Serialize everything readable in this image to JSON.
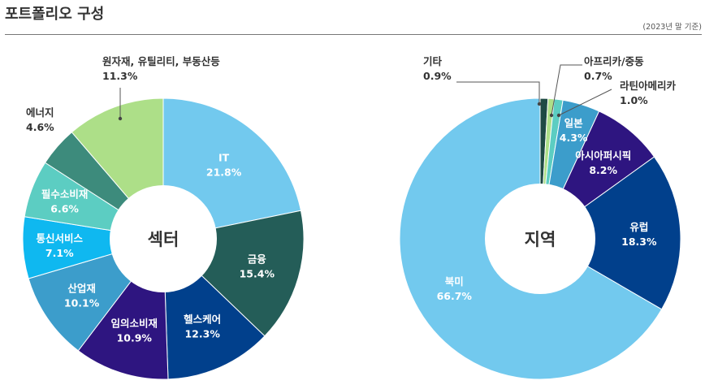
{
  "header": {
    "title": "포트폴리오 구성",
    "note": "(2023년 말 기준)"
  },
  "chart_data": [
    {
      "type": "pie",
      "title": "섹터",
      "unit": "%",
      "slices": [
        {
          "label": "IT",
          "value": 21.8,
          "display": "21.8%",
          "color": "#72c9ee",
          "text_color": "#ffffff"
        },
        {
          "label": "금융",
          "value": 15.4,
          "display": "15.4%",
          "color": "#245d58",
          "text_color": "#ffffff"
        },
        {
          "label": "헬스케어",
          "value": 12.3,
          "display": "12.3%",
          "color": "#01408c",
          "text_color": "#ffffff"
        },
        {
          "label": "임의소비재",
          "value": 10.9,
          "display": "10.9%",
          "color": "#2e1580",
          "text_color": "#ffffff"
        },
        {
          "label": "산업재",
          "value": 10.1,
          "display": "10.1%",
          "color": "#3c9dcb",
          "text_color": "#ffffff"
        },
        {
          "label": "통신서비스",
          "value": 7.1,
          "display": "7.1%",
          "color": "#0fb8f0",
          "text_color": "#ffffff"
        },
        {
          "label": "필수소비재",
          "value": 6.6,
          "display": "6.6%",
          "color": "#5ccdc2",
          "text_color": "#ffffff"
        },
        {
          "label": "에너지",
          "value": 4.6,
          "display": "4.6%",
          "color": "#3d8b7c",
          "text_color": "#333333"
        },
        {
          "label": "원자재, 유틸리티, 부동산등",
          "value": 11.3,
          "display": "11.3%",
          "color": "#addf88",
          "text_color": "#333333"
        }
      ]
    },
    {
      "type": "pie",
      "title": "지역",
      "unit": "%",
      "slices": [
        {
          "label": "기타",
          "value": 0.9,
          "display": "0.9%",
          "color": "#1f4a44",
          "text_color": "#333333"
        },
        {
          "label": "아프리카/중동",
          "value": 0.7,
          "display": "0.7%",
          "color": "#addf88",
          "text_color": "#333333"
        },
        {
          "label": "라틴아메리카",
          "value": 1.0,
          "display": "1.0%",
          "color": "#5ccdc2",
          "text_color": "#333333"
        },
        {
          "label": "일본",
          "value": 4.3,
          "display": "4.3%",
          "color": "#3c9dcb",
          "text_color": "#ffffff"
        },
        {
          "label": "아시아퍼시픽",
          "value": 8.2,
          "display": "8.2%",
          "color": "#2e1580",
          "text_color": "#ffffff"
        },
        {
          "label": "유럽",
          "value": 18.3,
          "display": "18.3%",
          "color": "#01408c",
          "text_color": "#ffffff"
        },
        {
          "label": "북미",
          "value": 66.7,
          "display": "66.7%",
          "color": "#72c9ee",
          "text_color": "#ffffff"
        }
      ]
    }
  ]
}
